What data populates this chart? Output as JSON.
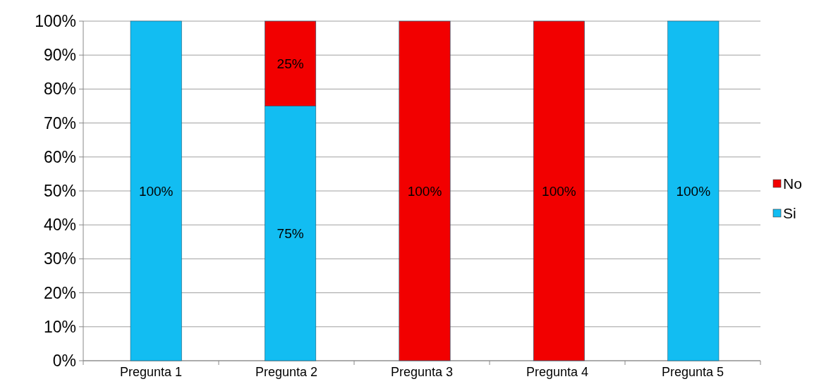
{
  "chart_data": {
    "type": "bar",
    "stacked": true,
    "categories": [
      "Pregunta 1",
      "Pregunta 2",
      "Pregunta 3",
      "Pregunta 4",
      "Pregunta 5"
    ],
    "series": [
      {
        "name": "Si",
        "color": "#12bdf2",
        "values": [
          100,
          75,
          0,
          0,
          100
        ],
        "value_labels": [
          "100%",
          "75%",
          null,
          null,
          "100%"
        ]
      },
      {
        "name": "No",
        "color": "#f20000",
        "values": [
          0,
          25,
          100,
          100,
          0
        ],
        "value_labels": [
          null,
          "25%",
          "100%",
          "100%",
          null
        ]
      }
    ],
    "ylim": [
      0,
      100
    ],
    "yticks": [
      {
        "value": 0,
        "label": "0%"
      },
      {
        "value": 10,
        "label": "10%"
      },
      {
        "value": 20,
        "label": "20%"
      },
      {
        "value": 30,
        "label": "30%"
      },
      {
        "value": 40,
        "label": "40%"
      },
      {
        "value": 50,
        "label": "50%"
      },
      {
        "value": 60,
        "label": "60%"
      },
      {
        "value": 70,
        "label": "70%"
      },
      {
        "value": 80,
        "label": "80%"
      },
      {
        "value": 90,
        "label": "90%"
      },
      {
        "value": 100,
        "label": "100%"
      }
    ],
    "grid": "y",
    "legend": "right"
  }
}
